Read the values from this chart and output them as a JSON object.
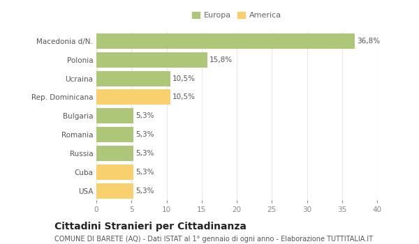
{
  "categories": [
    "Macedonia d/N.",
    "Polonia",
    "Ucraina",
    "Rep. Dominicana",
    "Bulgaria",
    "Romania",
    "Russia",
    "Cuba",
    "USA"
  ],
  "values": [
    36.8,
    15.8,
    10.5,
    10.5,
    5.3,
    5.3,
    5.3,
    5.3,
    5.3
  ],
  "labels": [
    "36,8%",
    "15,8%",
    "10,5%",
    "10,5%",
    "5,3%",
    "5,3%",
    "5,3%",
    "5,3%",
    "5,3%"
  ],
  "colors": [
    "#adc678",
    "#adc678",
    "#adc678",
    "#f9d06e",
    "#adc678",
    "#adc678",
    "#adc678",
    "#f9d06e",
    "#f9d06e"
  ],
  "europa_color": "#adc678",
  "america_color": "#f9d06e",
  "background_color": "#ffffff",
  "grid_color": "#e8e8e8",
  "xlim": [
    0,
    40
  ],
  "xticks": [
    0,
    5,
    10,
    15,
    20,
    25,
    30,
    35,
    40
  ],
  "title_main": "Cittadini Stranieri per Cittadinanza",
  "title_sub": "COMUNE DI BARETE (AQ) - Dati ISTAT al 1° gennaio di ogni anno - Elaborazione TUTTITALIA.IT",
  "legend_europa": "Europa",
  "legend_america": "America",
  "bar_label_fontsize": 7.5,
  "ytick_fontsize": 7.5,
  "xtick_fontsize": 7.5,
  "title_main_fontsize": 10,
  "title_sub_fontsize": 7,
  "bar_height": 0.82
}
